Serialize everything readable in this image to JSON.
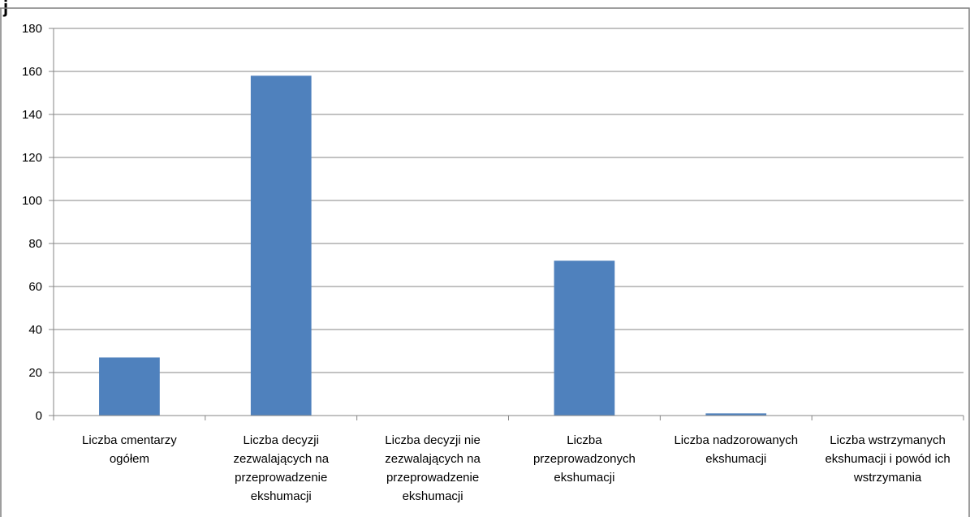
{
  "chart_data": {
    "type": "bar",
    "title_fragment": "j",
    "categories": [
      [
        "Liczba cmentarzy",
        "ogółem"
      ],
      [
        "Liczba decyzji",
        "zezwalających na",
        "przeprowadzenie",
        "ekshumacji"
      ],
      [
        "Liczba decyzji nie",
        "zezwalających na",
        "przeprowadzenie",
        "ekshumacji"
      ],
      [
        "Liczba",
        "przeprowadzonych",
        "ekshumacji"
      ],
      [
        "Liczba nadzorowanych",
        "ekshumacji"
      ],
      [
        "Liczba wstrzymanych",
        "ekshumacji i powód ich",
        "wstrzymania"
      ]
    ],
    "values": [
      27,
      158,
      0,
      72,
      1,
      0
    ],
    "ylim": [
      0,
      180
    ],
    "yticks": [
      0,
      20,
      40,
      60,
      80,
      100,
      120,
      140,
      160,
      180
    ],
    "grid": true,
    "legend": "none",
    "colors": {
      "bar": "#4f81bd",
      "grid": "#868686",
      "axis": "#868686",
      "frame": "#7f7f7f"
    }
  }
}
